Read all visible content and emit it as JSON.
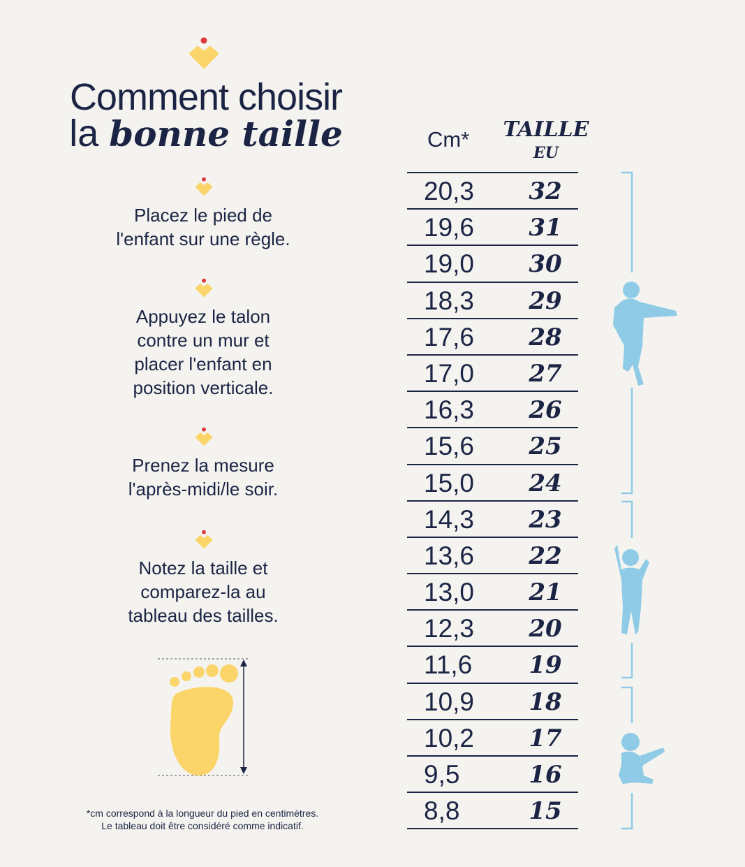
{
  "title": {
    "line1": "Comment choisir",
    "line2_prefix": "la ",
    "line2_bold": "bonne taille"
  },
  "steps": [
    {
      "text": "Placez le pied de\nl'enfant sur une règle."
    },
    {
      "text": "Appuyez le talon\ncontre un mur et\nplacer l'enfant en\nposition verticale."
    },
    {
      "text": "Prenez la mesure\nl'après-midi/le soir."
    },
    {
      "text": "Notez la taille et\ncomparez-la au\ntableau des tailles."
    }
  ],
  "footnote": {
    "line1": "*cm correspond à la longueur du pied en centimètres.",
    "line2": "Le tableau doit être considéré comme indicatif."
  },
  "table": {
    "header_cm": "Cm*",
    "header_size": "TAILLE",
    "header_size_sub": "EU",
    "rows": [
      {
        "cm": "20,3",
        "eu": "32"
      },
      {
        "cm": "19,6",
        "eu": "31"
      },
      {
        "cm": "19,0",
        "eu": "30"
      },
      {
        "cm": "18,3",
        "eu": "29"
      },
      {
        "cm": "17,6",
        "eu": "28"
      },
      {
        "cm": "17,0",
        "eu": "27"
      },
      {
        "cm": "16,3",
        "eu": "26"
      },
      {
        "cm": "15,6",
        "eu": "25"
      },
      {
        "cm": "15,0",
        "eu": "24"
      },
      {
        "cm": "14,3",
        "eu": "23"
      },
      {
        "cm": "13,6",
        "eu": "22"
      },
      {
        "cm": "13,0",
        "eu": "21"
      },
      {
        "cm": "12,3",
        "eu": "20"
      },
      {
        "cm": "11,6",
        "eu": "19"
      },
      {
        "cm": "10,9",
        "eu": "18"
      },
      {
        "cm": "10,2",
        "eu": "17"
      },
      {
        "cm": "9,5",
        "eu": "16"
      },
      {
        "cm": "8,8",
        "eu": "15"
      }
    ]
  },
  "colors": {
    "navy": "#1b2444",
    "yellow": "#fbd46a",
    "red": "#e0393e",
    "blue": "#8fcbe6",
    "background": "#f4f3ef"
  },
  "icons": [
    "heart-dot-logo-icon",
    "foot-icon",
    "child-standing-icon",
    "toddler-icon",
    "baby-sitting-icon"
  ]
}
